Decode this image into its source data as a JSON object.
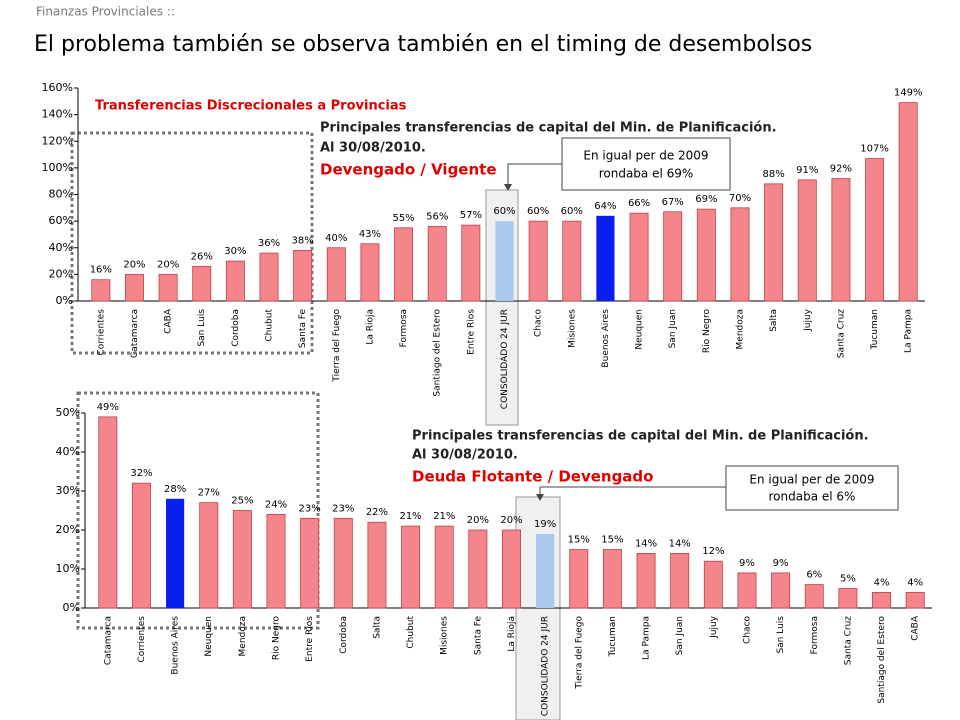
{
  "header": {
    "section": "Finanzas Provinciales ::",
    "title": "El problema también se observa también en el timing de desembolsos"
  },
  "chart_data": [
    {
      "type": "bar",
      "title": "Transferencias Discrecionales a Provincias",
      "annotation_lines": [
        "Principales transferencias de capital del Min. de Planificación.",
        "Al 30/08/2010."
      ],
      "subtitle": "Devengado / Vigente",
      "callout": [
        "En igual per de 2009",
        "rondaba el 69%"
      ],
      "categories": [
        "Corrientes",
        "Catamarca",
        "CABA",
        "San Luis",
        "Cordoba",
        "Chubut",
        "Santa Fe",
        "Tierra del Fuego",
        "La Rioja",
        "Formosa",
        "Santiago del Estero",
        "Entre Rios",
        "CONSOLIDADO 24 JUR",
        "Chaco",
        "Misiones",
        "Buenos Aires",
        "Neuquen",
        "San Juan",
        "Rio Negro",
        "Mendoza",
        "Salta",
        "Jujuy",
        "Santa Cruz",
        "Tucuman",
        "La Pampa"
      ],
      "values": [
        16,
        20,
        20,
        26,
        30,
        36,
        38,
        40,
        43,
        55,
        56,
        57,
        60,
        60,
        60,
        64,
        66,
        67,
        69,
        70,
        88,
        91,
        92,
        107,
        149
      ],
      "value_labels": [
        "16%",
        "20%",
        "20%",
        "26%",
        "30%",
        "36%",
        "38%",
        "40%",
        "43%",
        "55%",
        "56%",
        "57%",
        "60%",
        "60%",
        "60%",
        "64%",
        "66%",
        "67%",
        "69%",
        "70%",
        "88%",
        "91%",
        "92%",
        "107%",
        "149%"
      ],
      "colors": [
        "#f4868b",
        "#f4868b",
        "#f4868b",
        "#f4868b",
        "#f4868b",
        "#f4868b",
        "#f4868b",
        "#f4868b",
        "#f4868b",
        "#f4868b",
        "#f4868b",
        "#f4868b",
        "#a9c9ef",
        "#f4868b",
        "#f4868b",
        "#0a1ef0",
        "#f4868b",
        "#f4868b",
        "#f4868b",
        "#f4868b",
        "#f4868b",
        "#f4868b",
        "#f4868b",
        "#f4868b",
        "#f4868b"
      ],
      "ylim": [
        0,
        160
      ],
      "yticks": [
        {
          "value": 0,
          "label": "0%"
        },
        {
          "value": 20,
          "label": "20%"
        },
        {
          "value": 40,
          "label": "40%"
        },
        {
          "value": 60,
          "label": "60%"
        },
        {
          "value": 80,
          "label": "80%"
        },
        {
          "value": 100,
          "label": "100%"
        },
        {
          "value": 120,
          "label": "120%"
        },
        {
          "value": 140,
          "label": "140%"
        },
        {
          "value": 160,
          "label": "160%"
        }
      ],
      "grid": false
    },
    {
      "type": "bar",
      "annotation_lines": [
        "Principales transferencias de capital del Min. de Planificación.",
        "Al 30/08/2010."
      ],
      "subtitle": "Deuda Flotante / Devengado",
      "callout": [
        "En igual per de 2009",
        "rondaba el 6%"
      ],
      "categories": [
        "Catamarca",
        "Corrientes",
        "Buenos Aires",
        "Neuquen",
        "Mendoza",
        "Rio Negro",
        "Entre Rios",
        "Cordoba",
        "Salta",
        "Chubut",
        "Misiones",
        "Santa Fe",
        "La Rioja",
        "CONSOLIDADO 24 JUR",
        "Tierra del Fuego",
        "Tucuman",
        "La Pampa",
        "San Juan",
        "Jujuy",
        "Chaco",
        "San Luis",
        "Formosa",
        "Santa Cruz",
        "Santiago del Estero",
        "CABA"
      ],
      "values": [
        49,
        32,
        28,
        27,
        25,
        24,
        23,
        23,
        22,
        21,
        21,
        20,
        20,
        19,
        15,
        15,
        14,
        14,
        12,
        9,
        9,
        6,
        5,
        4,
        4
      ],
      "value_labels": [
        "49%",
        "32%",
        "28%",
        "27%",
        "25%",
        "24%",
        "23%",
        "23%",
        "22%",
        "21%",
        "21%",
        "20%",
        "20%",
        "19%",
        "15%",
        "15%",
        "14%",
        "14%",
        "12%",
        "9%",
        "9%",
        "6%",
        "5%",
        "4%",
        "4%"
      ],
      "colors": [
        "#f4868b",
        "#f4868b",
        "#0a1ef0",
        "#f4868b",
        "#f4868b",
        "#f4868b",
        "#f4868b",
        "#f4868b",
        "#f4868b",
        "#f4868b",
        "#f4868b",
        "#f4868b",
        "#f4868b",
        "#a9c9ef",
        "#f4868b",
        "#f4868b",
        "#f4868b",
        "#f4868b",
        "#f4868b",
        "#f4868b",
        "#f4868b",
        "#f4868b",
        "#f4868b",
        "#f4868b",
        "#f4868b"
      ],
      "ylim": [
        0,
        50
      ],
      "yticks": [
        {
          "value": 0,
          "label": "0%"
        },
        {
          "value": 10,
          "label": "10%"
        },
        {
          "value": 20,
          "label": "20%"
        },
        {
          "value": 30,
          "label": "30%"
        },
        {
          "value": 40,
          "label": "40%"
        },
        {
          "value": 50,
          "label": "50%"
        }
      ],
      "grid": false
    }
  ]
}
